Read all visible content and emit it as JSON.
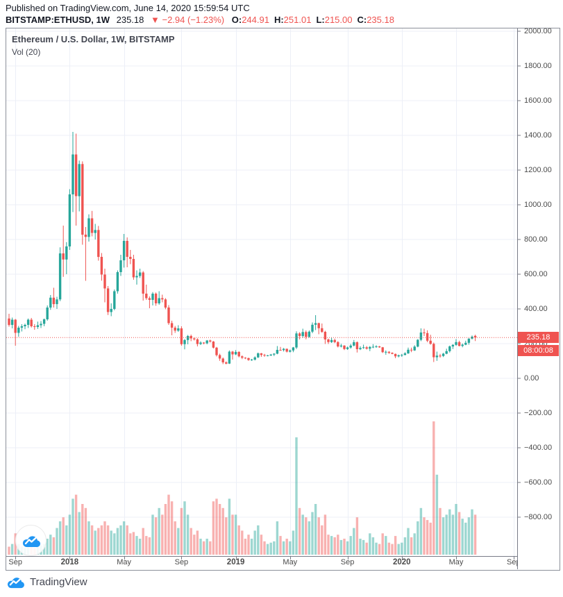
{
  "header": {
    "published": "Published on TradingView.com, June 14, 2020 15:59:54 UTC",
    "symbol": "BITSTAMP:ETHUSD, 1W",
    "last_price": "235.18",
    "change": "▼ −2.94 (−1.23%)",
    "ohlc": [
      {
        "label": "O:",
        "value": "244.91"
      },
      {
        "label": "H:",
        "value": "251.01"
      },
      {
        "label": "L:",
        "value": "215.00"
      },
      {
        "label": "C:",
        "value": "235.18"
      }
    ]
  },
  "chart": {
    "legend_title": "Ethereum / U.S. Dollar, 1W, BITSTAMP",
    "legend_indicator": "Vol (20)",
    "price_tag": "235.18",
    "countdown_tag": "08:00:08"
  },
  "footer": {
    "brand": "TradingView"
  },
  "colors": {
    "up": "#26a69a",
    "down": "#ef5350",
    "vol_up": "rgba(38,166,154,0.45)",
    "vol_down": "rgba(239,83,80,0.45)",
    "grid": "#eceff7",
    "axis_text": "#4a4a4a",
    "price_line": "#ef5350",
    "tag_bg": "#ef5350",
    "brand_blue": "#2196f3"
  },
  "chart_data": {
    "type": "candlestick+volume",
    "symbol": "BITSTAMP:ETHUSD",
    "interval": "1W",
    "title": "Ethereum / U.S. Dollar, 1W, BITSTAMP",
    "current_price": 235.18,
    "y_axis": {
      "ticks": [
        2000,
        1800,
        1600,
        1400,
        1200,
        1000,
        800,
        600,
        400,
        200,
        0,
        -200,
        -400,
        -600,
        -800
      ]
    },
    "x_labels": [
      {
        "label": "Sep",
        "week": 2,
        "bold": false
      },
      {
        "label": "2018",
        "week": 19,
        "bold": true
      },
      {
        "label": "May",
        "week": 36,
        "bold": false
      },
      {
        "label": "Sep",
        "week": 54,
        "bold": false
      },
      {
        "label": "2019",
        "week": 71,
        "bold": true
      },
      {
        "label": "May",
        "week": 88,
        "bold": false
      },
      {
        "label": "Sep",
        "week": 106,
        "bold": false
      },
      {
        "label": "2020",
        "week": 123,
        "bold": true
      },
      {
        "label": "May",
        "week": 140,
        "bold": false
      },
      {
        "label": "Sep",
        "week": 158,
        "bold": false
      }
    ],
    "candles_note": "weekly ETHUSD candles Aug-2017 to Jun-2020 as [open,high,low,close,relative_volume]",
    "candles": [
      [
        345,
        372,
        298,
        308,
        0.06
      ],
      [
        308,
        350,
        288,
        338,
        0.08
      ],
      [
        338,
        342,
        188,
        262,
        0.16
      ],
      [
        262,
        302,
        240,
        292,
        0.08
      ],
      [
        292,
        312,
        270,
        300,
        0.06
      ],
      [
        300,
        315,
        283,
        308,
        0.05
      ],
      [
        308,
        345,
        290,
        338,
        0.07
      ],
      [
        338,
        348,
        293,
        300,
        0.06
      ],
      [
        300,
        312,
        280,
        296,
        0.05
      ],
      [
        296,
        327,
        285,
        306,
        0.06
      ],
      [
        306,
        330,
        290,
        314,
        0.07
      ],
      [
        314,
        345,
        300,
        340,
        0.08
      ],
      [
        340,
        420,
        332,
        408,
        0.12
      ],
      [
        408,
        480,
        395,
        465,
        0.15
      ],
      [
        465,
        522,
        408,
        428,
        0.13
      ],
      [
        428,
        470,
        400,
        455,
        0.2
      ],
      [
        455,
        755,
        445,
        720,
        0.25
      ],
      [
        720,
        880,
        585,
        685,
        0.28
      ],
      [
        685,
        785,
        600,
        760,
        0.22
      ],
      [
        760,
        1090,
        740,
        1060,
        0.3
      ],
      [
        1060,
        1420,
        958,
        1290,
        0.42
      ],
      [
        1290,
        1410,
        880,
        1050,
        0.45
      ],
      [
        1050,
        1255,
        962,
        1235,
        0.32
      ],
      [
        1235,
        1250,
        770,
        828,
        0.38
      ],
      [
        828,
        872,
        562,
        815,
        0.35
      ],
      [
        815,
        945,
        788,
        922,
        0.25
      ],
      [
        922,
        965,
        818,
        838,
        0.22
      ],
      [
        838,
        890,
        800,
        855,
        0.18
      ],
      [
        855,
        878,
        678,
        700,
        0.2
      ],
      [
        700,
        722,
        563,
        598,
        0.22
      ],
      [
        598,
        632,
        438,
        518,
        0.25
      ],
      [
        518,
        532,
        365,
        382,
        0.22
      ],
      [
        382,
        432,
        358,
        400,
        0.18
      ],
      [
        400,
        512,
        392,
        502,
        0.16
      ],
      [
        502,
        622,
        488,
        612,
        0.2
      ],
      [
        612,
        712,
        590,
        680,
        0.22
      ],
      [
        680,
        832,
        638,
        792,
        0.25
      ],
      [
        792,
        812,
        640,
        700,
        0.22
      ],
      [
        700,
        740,
        658,
        688,
        0.16
      ],
      [
        688,
        712,
        568,
        582,
        0.17
      ],
      [
        582,
        622,
        540,
        590,
        0.14
      ],
      [
        590,
        632,
        578,
        610,
        0.12
      ],
      [
        610,
        618,
        448,
        488,
        0.2
      ],
      [
        488,
        540,
        452,
        462,
        0.14
      ],
      [
        462,
        472,
        404,
        452,
        0.13
      ],
      [
        452,
        497,
        420,
        488,
        0.3
      ],
      [
        488,
        495,
        418,
        432,
        0.28
      ],
      [
        432,
        502,
        424,
        462,
        0.35
      ],
      [
        462,
        482,
        438,
        455,
        0.3
      ],
      [
        455,
        462,
        398,
        408,
        0.38
      ],
      [
        408,
        422,
        308,
        318,
        0.45
      ],
      [
        318,
        332,
        248,
        292,
        0.4
      ],
      [
        292,
        302,
        262,
        275,
        0.25
      ],
      [
        275,
        306,
        268,
        288,
        0.2
      ],
      [
        288,
        300,
        188,
        197,
        0.35
      ],
      [
        197,
        226,
        167,
        221,
        0.4
      ],
      [
        221,
        250,
        196,
        244,
        0.3
      ],
      [
        244,
        252,
        214,
        230,
        0.2
      ],
      [
        230,
        236,
        218,
        225,
        0.15
      ],
      [
        225,
        231,
        184,
        198,
        0.18
      ],
      [
        198,
        213,
        192,
        206,
        0.12
      ],
      [
        206,
        209,
        196,
        202,
        0.1
      ],
      [
        202,
        221,
        196,
        218,
        0.12
      ],
      [
        218,
        223,
        206,
        212,
        0.1
      ],
      [
        212,
        215,
        172,
        177,
        0.4
      ],
      [
        177,
        181,
        126,
        134,
        0.42
      ],
      [
        134,
        142,
        101,
        114,
        0.38
      ],
      [
        114,
        120,
        82,
        92,
        0.35
      ],
      [
        92,
        98,
        81,
        85,
        0.28
      ],
      [
        85,
        161,
        83,
        154,
        0.42
      ],
      [
        154,
        158,
        108,
        138,
        0.3
      ],
      [
        138,
        163,
        134,
        152,
        0.3
      ],
      [
        152,
        157,
        121,
        127,
        0.22
      ],
      [
        127,
        132,
        111,
        119,
        0.18
      ],
      [
        119,
        122,
        111,
        117,
        0.12
      ],
      [
        117,
        119,
        101,
        106,
        0.15
      ],
      [
        106,
        112,
        101,
        108,
        0.12
      ],
      [
        108,
        127,
        103,
        121,
        0.18
      ],
      [
        121,
        149,
        117,
        144,
        0.22
      ],
      [
        144,
        146,
        124,
        135,
        0.15
      ],
      [
        135,
        141,
        124,
        131,
        0.1
      ],
      [
        131,
        135,
        127,
        132,
        0.08
      ],
      [
        132,
        141,
        129,
        137,
        0.09
      ],
      [
        137,
        145,
        128,
        142,
        0.1
      ],
      [
        142,
        186,
        139,
        164,
        0.25
      ],
      [
        164,
        181,
        159,
        163,
        0.14
      ],
      [
        163,
        175,
        155,
        170,
        0.1
      ],
      [
        170,
        172,
        149,
        154,
        0.12
      ],
      [
        154,
        166,
        149,
        161,
        0.1
      ],
      [
        161,
        181,
        151,
        178,
        0.18
      ],
      [
        178,
        271,
        169,
        259,
        0.88
      ],
      [
        259,
        266,
        224,
        244,
        0.35
      ],
      [
        244,
        286,
        234,
        267,
        0.3
      ],
      [
        267,
        276,
        225,
        239,
        0.28
      ],
      [
        239,
        276,
        234,
        269,
        0.25
      ],
      [
        269,
        322,
        260,
        309,
        0.32
      ],
      [
        309,
        364,
        278,
        318,
        0.38
      ],
      [
        318,
        321,
        254,
        289,
        0.28
      ],
      [
        289,
        316,
        262,
        268,
        0.22
      ],
      [
        268,
        274,
        198,
        224,
        0.3
      ],
      [
        224,
        229,
        198,
        209,
        0.15
      ],
      [
        209,
        234,
        204,
        221,
        0.14
      ],
      [
        221,
        229,
        203,
        209,
        0.13
      ],
      [
        209,
        214,
        178,
        184,
        0.15
      ],
      [
        184,
        199,
        178,
        189,
        0.11
      ],
      [
        189,
        191,
        163,
        169,
        0.12
      ],
      [
        169,
        183,
        164,
        178,
        0.1
      ],
      [
        178,
        198,
        171,
        189,
        0.14
      ],
      [
        189,
        221,
        184,
        208,
        0.2
      ],
      [
        208,
        213,
        149,
        168,
        0.28
      ],
      [
        168,
        185,
        163,
        175,
        0.12
      ],
      [
        175,
        194,
        170,
        179,
        0.11
      ],
      [
        179,
        186,
        166,
        171,
        0.09
      ],
      [
        171,
        186,
        157,
        181,
        0.16
      ],
      [
        181,
        197,
        174,
        182,
        0.13
      ],
      [
        182,
        191,
        176,
        184,
        0.09
      ],
      [
        184,
        187,
        176,
        179,
        0.08
      ],
      [
        179,
        181,
        146,
        151,
        0.16
      ],
      [
        151,
        161,
        136,
        153,
        0.14
      ],
      [
        153,
        157,
        141,
        147,
        0.09
      ],
      [
        147,
        150,
        139,
        141,
        0.08
      ],
      [
        141,
        143,
        116,
        127,
        0.14
      ],
      [
        127,
        137,
        121,
        133,
        0.08
      ],
      [
        133,
        141,
        124,
        135,
        0.09
      ],
      [
        135,
        151,
        132,
        144,
        0.13
      ],
      [
        144,
        177,
        141,
        165,
        0.2
      ],
      [
        165,
        177,
        151,
        161,
        0.13
      ],
      [
        161,
        191,
        158,
        183,
        0.16
      ],
      [
        183,
        226,
        179,
        222,
        0.25
      ],
      [
        222,
        288,
        214,
        264,
        0.35
      ],
      [
        264,
        286,
        244,
        261,
        0.28
      ],
      [
        261,
        277,
        208,
        217,
        0.26
      ],
      [
        217,
        251,
        194,
        199,
        0.24
      ],
      [
        199,
        206,
        94,
        122,
        1.0
      ],
      [
        122,
        154,
        101,
        131,
        0.6
      ],
      [
        131,
        141,
        119,
        129,
        0.35
      ],
      [
        129,
        147,
        123,
        142,
        0.28
      ],
      [
        142,
        171,
        139,
        157,
        0.3
      ],
      [
        157,
        189,
        149,
        184,
        0.34
      ],
      [
        184,
        197,
        169,
        193,
        0.3
      ],
      [
        193,
        226,
        188,
        209,
        0.38
      ],
      [
        209,
        217,
        184,
        187,
        0.32
      ],
      [
        187,
        201,
        179,
        194,
        0.27
      ],
      [
        194,
        217,
        191,
        205,
        0.24
      ],
      [
        205,
        231,
        194,
        229,
        0.28
      ],
      [
        229,
        247,
        224,
        240,
        0.34
      ],
      [
        244.91,
        251.01,
        215,
        235.18,
        0.3
      ]
    ]
  }
}
